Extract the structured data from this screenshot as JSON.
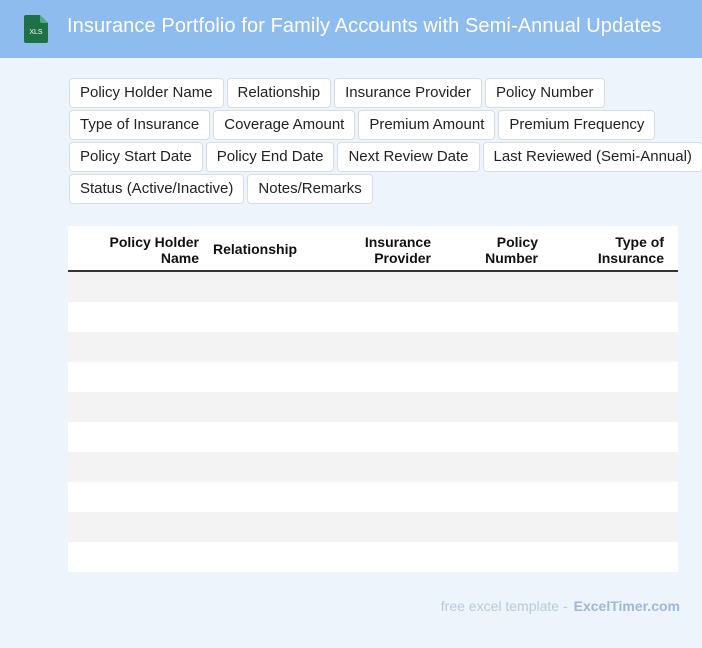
{
  "header": {
    "title": "Insurance Portfolio for Family Accounts with Semi-Annual Updates",
    "icon_label": "XLS",
    "icon_color": "#1e7145"
  },
  "fields": [
    [
      "Policy Holder Name",
      "Relationship",
      "Insurance Provider",
      "Policy Number"
    ],
    [
      "Type of Insurance",
      "Coverage Amount",
      "Premium Amount",
      "Premium Frequency"
    ],
    [
      "Policy Start Date",
      "Policy End Date",
      "Next Review Date",
      "Last Reviewed (Semi-Annual)"
    ],
    [
      "Status (Active/Inactive)",
      "Notes/Remarks"
    ]
  ],
  "table": {
    "columns": [
      {
        "line1": "Policy Holder",
        "line2": "Name"
      },
      {
        "line1": "Relationship",
        "line2": ""
      },
      {
        "line1": "Insurance",
        "line2": "Provider"
      },
      {
        "line1": "Policy",
        "line2": "Number"
      },
      {
        "line1": "Type of",
        "line2": "Insurance"
      }
    ],
    "row_count": 10
  },
  "footer": {
    "text": "free excel template -",
    "brand": "ExcelTimer.com"
  },
  "colors": {
    "header_bg": "#8fbcef",
    "page_bg": "#eef4fc",
    "row_stripe": "#f3f3f3"
  }
}
